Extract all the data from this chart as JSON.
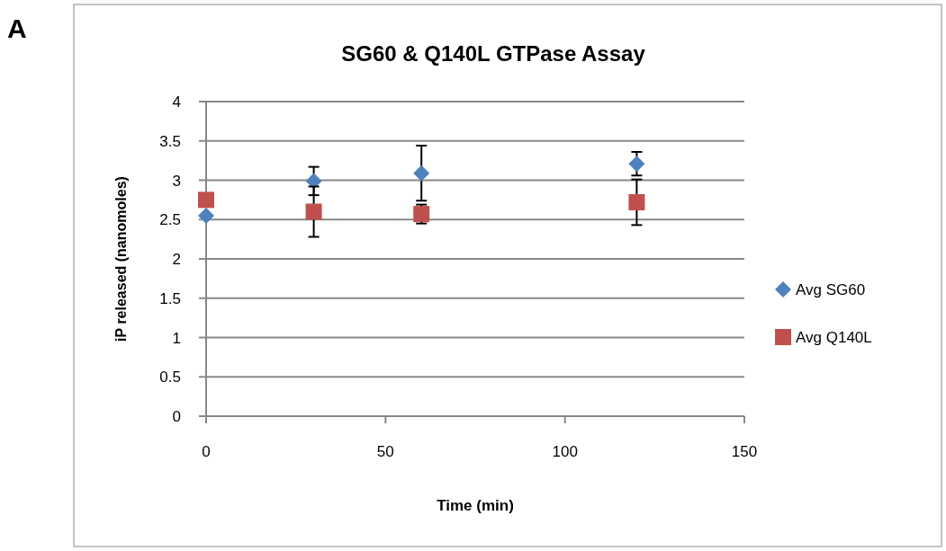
{
  "chart_data": {
    "type": "scatter",
    "title": "SG60 & Q140L GTPase Assay",
    "xlabel": "Time (min)",
    "ylabel": "iP released  (nanomoles)",
    "annotations": [
      "A"
    ],
    "x": [
      0,
      30,
      60,
      120
    ],
    "series": [
      {
        "name": "Avg SG60",
        "color": "#4f81bd",
        "marker": "diamond",
        "values": [
          2.55,
          2.99,
          3.09,
          3.21
        ],
        "errors": [
          null,
          0.18,
          0.35,
          0.15
        ]
      },
      {
        "name": "Avg Q140L",
        "color": "#c0504d",
        "marker": "square",
        "values": [
          2.75,
          2.6,
          2.57,
          2.72
        ],
        "errors": [
          null,
          0.32,
          0.12,
          0.29
        ]
      }
    ],
    "xlim": [
      0,
      150
    ],
    "xticks": [
      0,
      50,
      100,
      150
    ],
    "ylim": [
      0,
      4
    ],
    "yticks": [
      0,
      0.5,
      1,
      1.5,
      2,
      2.5,
      3,
      3.5,
      4
    ],
    "grid": "y",
    "legend": "right"
  }
}
